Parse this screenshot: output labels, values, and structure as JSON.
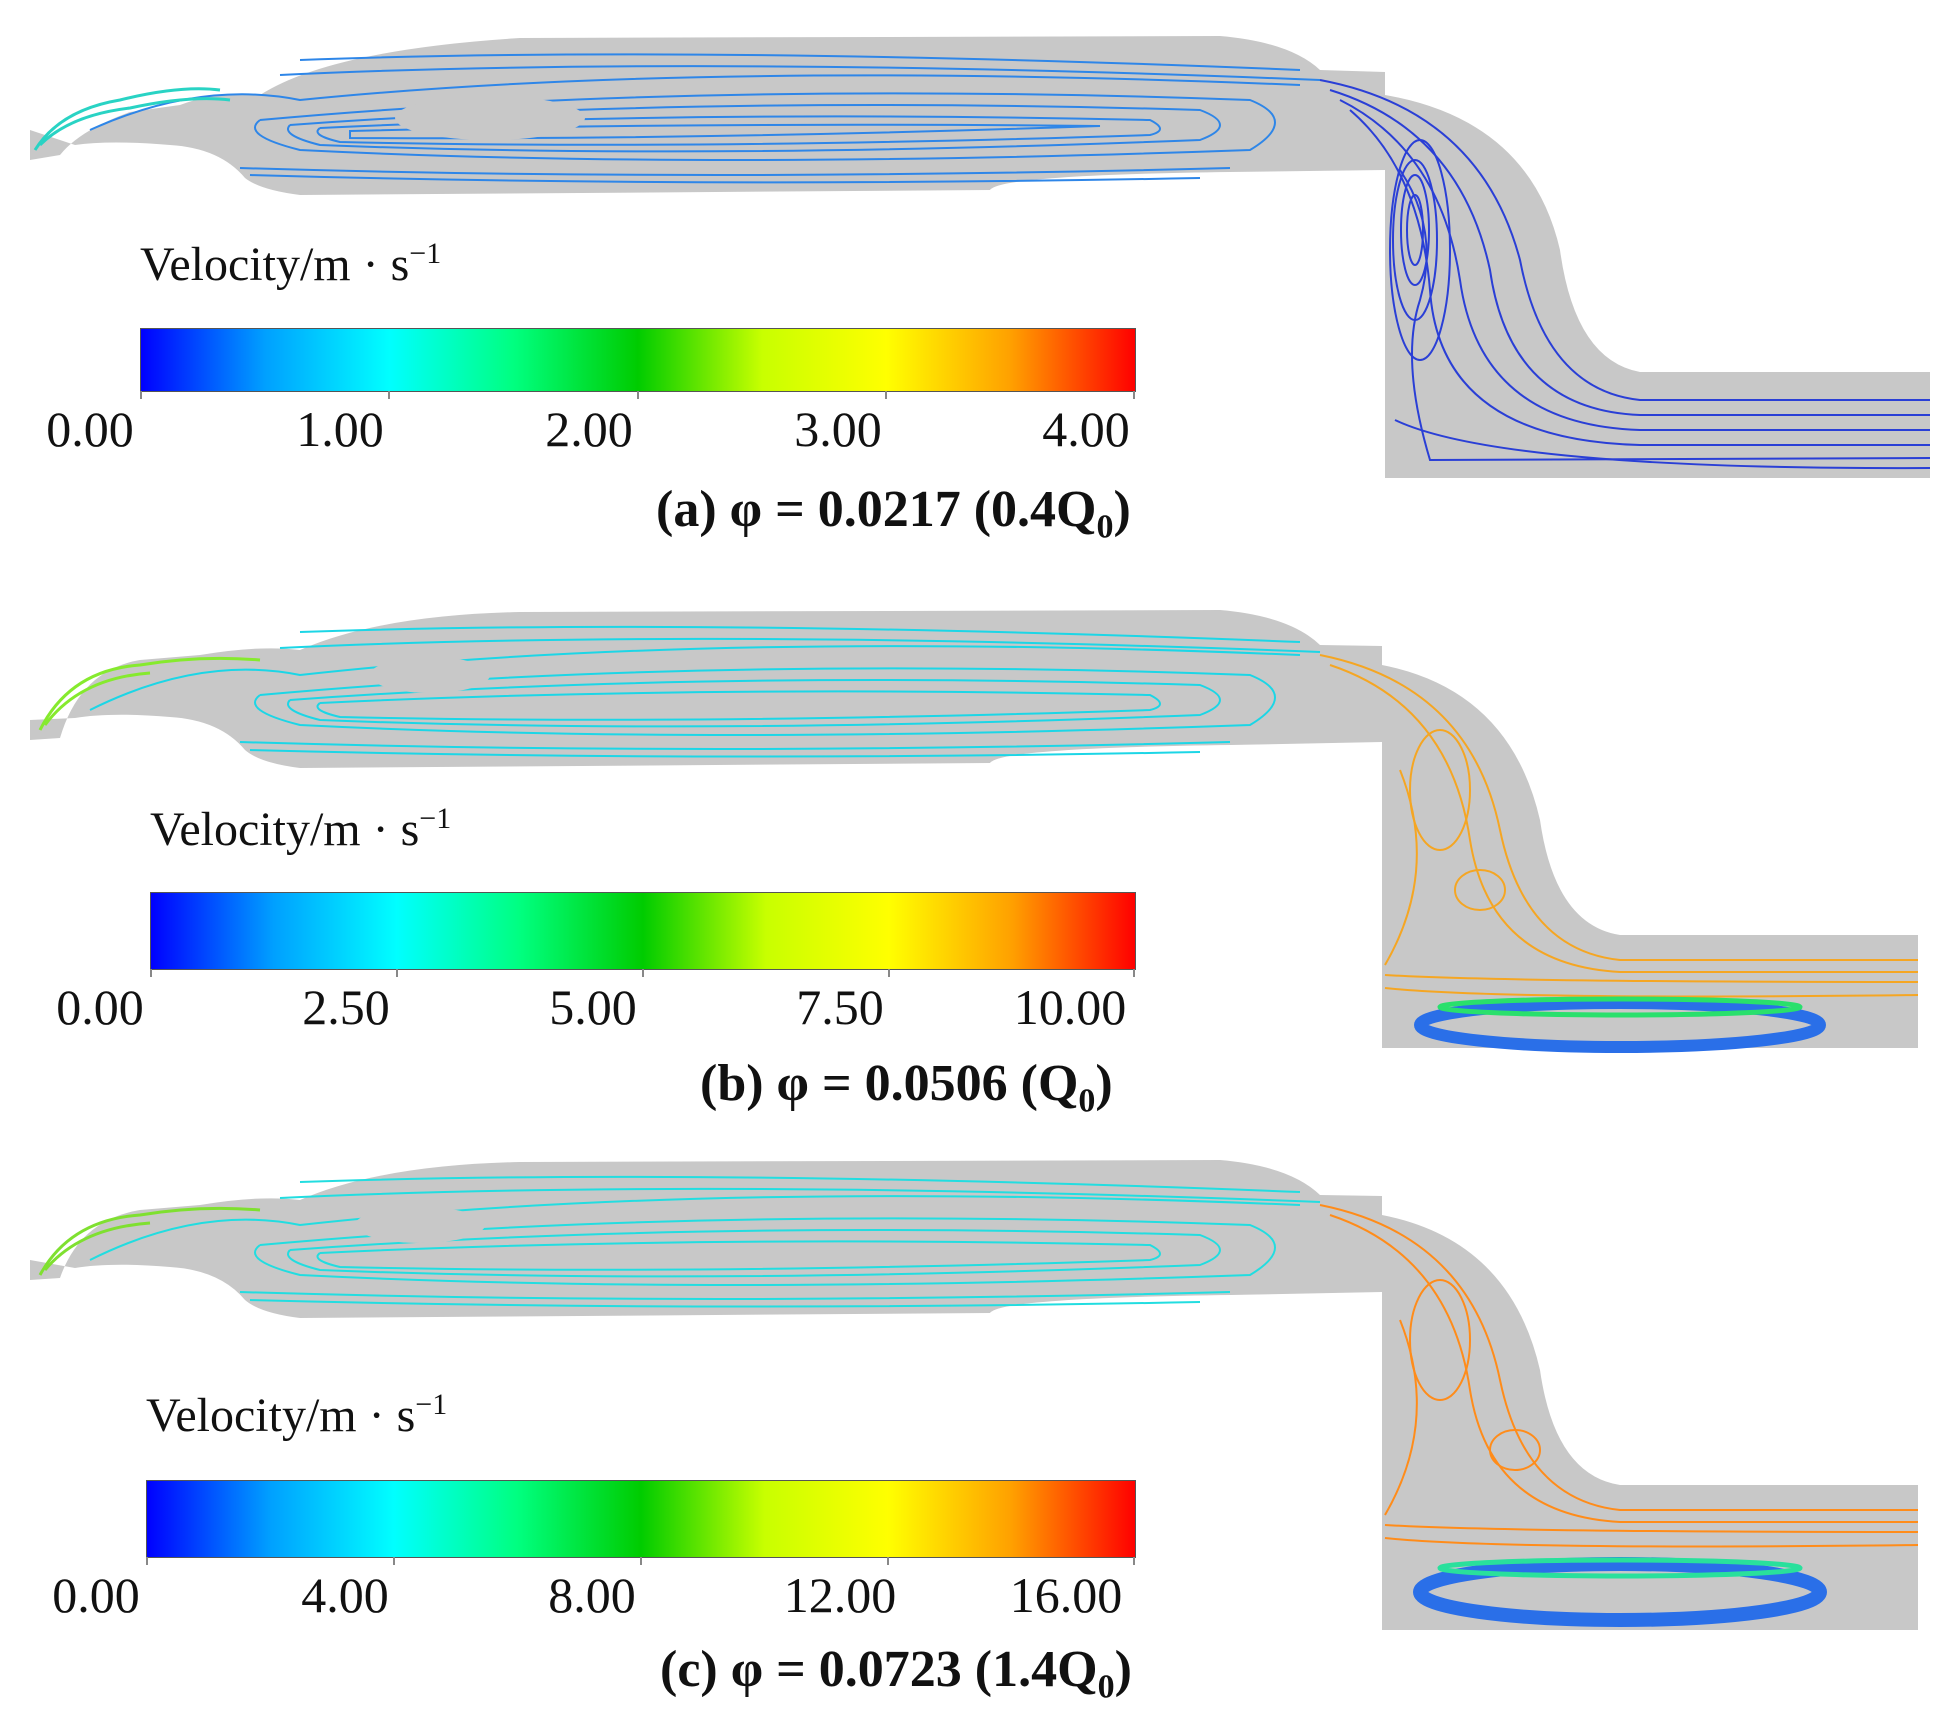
{
  "legend_title": "Velocity/m · s",
  "legend_exponent": "−1",
  "colormap": [
    "#0000ff",
    "#00a0ff",
    "#00ffff",
    "#00ff80",
    "#00cc00",
    "#c8ff00",
    "#ffff00",
    "#ffa000",
    "#ff0000"
  ],
  "panels": [
    {
      "caption_prefix": "(a) φ = 0.0217 (0.4Q",
      "caption_sub": "0",
      "caption_suffix": ")",
      "ticks": [
        "0.00",
        "1.00",
        "2.00",
        "3.00",
        "4.00"
      ],
      "stream_colors": {
        "chamber": "#2e86e8",
        "outlet": "#2a3fd6",
        "inlet": "#29d3c4"
      }
    },
    {
      "caption_prefix": "(b) φ = 0.0506 (Q",
      "caption_sub": "0",
      "caption_suffix": ")",
      "ticks": [
        "0.00",
        "2.50",
        "5.00",
        "7.50",
        "10.00"
      ],
      "stream_colors": {
        "chamber": "#1cd6e6",
        "outlet": "#f5a623",
        "inlet": "#86ea2e"
      }
    },
    {
      "caption_prefix": "(c) φ = 0.0723 (1.4Q",
      "caption_sub": "0",
      "caption_suffix": ")",
      "ticks": [
        "0.00",
        "4.00",
        "8.00",
        "12.00",
        "16.00"
      ],
      "stream_colors": {
        "chamber": "#22dde0",
        "outlet": "#ff8c1a",
        "inlet": "#7fe030"
      }
    }
  ]
}
